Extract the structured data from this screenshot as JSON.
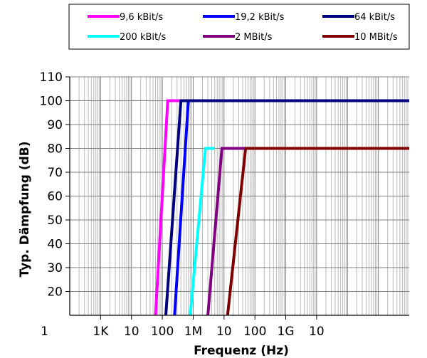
{
  "chart_data": {
    "type": "line",
    "title": "",
    "xlabel": "Frequenz (Hz)",
    "ylabel": "Typ. Dämpfung (dB)",
    "x_scale": "log",
    "xlim_hz": [
      100,
      10000000000000.0
    ],
    "ylim": [
      10,
      110
    ],
    "y_ticks": [
      110,
      100,
      90,
      80,
      70,
      60,
      50,
      40,
      30,
      20
    ],
    "y_floor_label": "1",
    "x_tick_labels": [
      "1K",
      "10",
      "100",
      "1M",
      "10",
      "100",
      "1G",
      "10"
    ],
    "x_tick_values_hz": [
      1000,
      10000,
      100000,
      1000000,
      10000000,
      100000000,
      1000000000,
      10000000000
    ],
    "grid": true,
    "legend_position": "top",
    "series": [
      {
        "name": "9,6 kBit/s",
        "color": "#ff00ff",
        "x": [
          60000,
          150000,
          10000000000000.0
        ],
        "y": [
          10,
          100,
          100
        ]
      },
      {
        "name": "19,2 kBit/s",
        "color": "#0000ff",
        "x": [
          250000,
          700000,
          10000000000000.0
        ],
        "y": [
          10,
          100,
          100
        ]
      },
      {
        "name": "64 kBit/s",
        "color": "#000080",
        "x": [
          130000,
          400000,
          10000000000000.0
        ],
        "y": [
          10,
          100,
          100
        ]
      },
      {
        "name": "200 kBit/s",
        "color": "#00ffff",
        "x": [
          800000,
          2500000,
          5000000
        ],
        "y": [
          10,
          80,
          80
        ]
      },
      {
        "name": "2 MBit/s",
        "color": "#800080",
        "x": [
          3000000,
          8500000,
          60000000
        ],
        "y": [
          10,
          80,
          80
        ]
      },
      {
        "name": "10 MBit/s",
        "color": "#800000",
        "x": [
          13000000,
          50000000,
          10000000000000.0
        ],
        "y": [
          10,
          80,
          80
        ]
      }
    ]
  }
}
